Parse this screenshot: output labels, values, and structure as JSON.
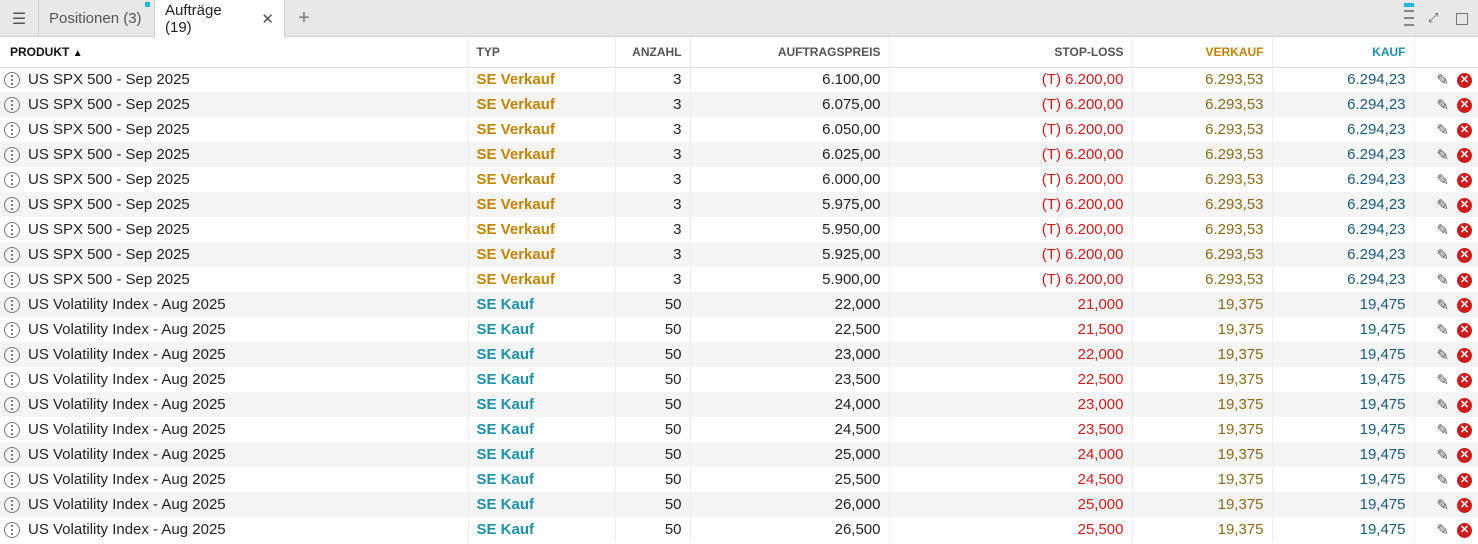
{
  "tabs": {
    "menu_icon": "hamburger-icon",
    "items": [
      {
        "label": "Positionen (3)"
      },
      {
        "label": "Aufträge (19)"
      }
    ],
    "close_glyph": "✕",
    "add_glyph": "+"
  },
  "columns": {
    "produkt": "PRODUKT",
    "typ": "TYP",
    "anzahl": "ANZAHL",
    "auftragspreis": "AUFTRAGSPREIS",
    "stop_loss": "STOP-LOSS",
    "verkauf": "VERKAUF",
    "kauf": "KAUF"
  },
  "colors": {
    "sell": "#c08400",
    "buy": "#1e90a8",
    "stop": "#cc1d1d"
  },
  "rows": [
    {
      "produkt": "US SPX 500 - Sep 2025",
      "typ": "SE Verkauf",
      "side": "sell",
      "anzahl": "3",
      "preis": "6.100,00",
      "stop": "(T) 6.200,00",
      "verkauf": "6.293,53",
      "kauf": "6.294,23"
    },
    {
      "produkt": "US SPX 500 - Sep 2025",
      "typ": "SE Verkauf",
      "side": "sell",
      "anzahl": "3",
      "preis": "6.075,00",
      "stop": "(T) 6.200,00",
      "verkauf": "6.293,53",
      "kauf": "6.294,23"
    },
    {
      "produkt": "US SPX 500 - Sep 2025",
      "typ": "SE Verkauf",
      "side": "sell",
      "anzahl": "3",
      "preis": "6.050,00",
      "stop": "(T) 6.200,00",
      "verkauf": "6.293,53",
      "kauf": "6.294,23"
    },
    {
      "produkt": "US SPX 500 - Sep 2025",
      "typ": "SE Verkauf",
      "side": "sell",
      "anzahl": "3",
      "preis": "6.025,00",
      "stop": "(T) 6.200,00",
      "verkauf": "6.293,53",
      "kauf": "6.294,23"
    },
    {
      "produkt": "US SPX 500 - Sep 2025",
      "typ": "SE Verkauf",
      "side": "sell",
      "anzahl": "3",
      "preis": "6.000,00",
      "stop": "(T) 6.200,00",
      "verkauf": "6.293,53",
      "kauf": "6.294,23"
    },
    {
      "produkt": "US SPX 500 - Sep 2025",
      "typ": "SE Verkauf",
      "side": "sell",
      "anzahl": "3",
      "preis": "5.975,00",
      "stop": "(T) 6.200,00",
      "verkauf": "6.293,53",
      "kauf": "6.294,23"
    },
    {
      "produkt": "US SPX 500 - Sep 2025",
      "typ": "SE Verkauf",
      "side": "sell",
      "anzahl": "3",
      "preis": "5.950,00",
      "stop": "(T) 6.200,00",
      "verkauf": "6.293,53",
      "kauf": "6.294,23"
    },
    {
      "produkt": "US SPX 500 - Sep 2025",
      "typ": "SE Verkauf",
      "side": "sell",
      "anzahl": "3",
      "preis": "5.925,00",
      "stop": "(T) 6.200,00",
      "verkauf": "6.293,53",
      "kauf": "6.294,23"
    },
    {
      "produkt": "US SPX 500 - Sep 2025",
      "typ": "SE Verkauf",
      "side": "sell",
      "anzahl": "3",
      "preis": "5.900,00",
      "stop": "(T) 6.200,00",
      "verkauf": "6.293,53",
      "kauf": "6.294,23"
    },
    {
      "produkt": "US Volatility Index - Aug 2025",
      "typ": "SE Kauf",
      "side": "buy",
      "anzahl": "50",
      "preis": "22,000",
      "stop": "21,000",
      "verkauf": "19,375",
      "kauf": "19,475"
    },
    {
      "produkt": "US Volatility Index - Aug 2025",
      "typ": "SE Kauf",
      "side": "buy",
      "anzahl": "50",
      "preis": "22,500",
      "stop": "21,500",
      "verkauf": "19,375",
      "kauf": "19,475"
    },
    {
      "produkt": "US Volatility Index - Aug 2025",
      "typ": "SE Kauf",
      "side": "buy",
      "anzahl": "50",
      "preis": "23,000",
      "stop": "22,000",
      "verkauf": "19,375",
      "kauf": "19,475"
    },
    {
      "produkt": "US Volatility Index - Aug 2025",
      "typ": "SE Kauf",
      "side": "buy",
      "anzahl": "50",
      "preis": "23,500",
      "stop": "22,500",
      "verkauf": "19,375",
      "kauf": "19,475"
    },
    {
      "produkt": "US Volatility Index - Aug 2025",
      "typ": "SE Kauf",
      "side": "buy",
      "anzahl": "50",
      "preis": "24,000",
      "stop": "23,000",
      "verkauf": "19,375",
      "kauf": "19,475"
    },
    {
      "produkt": "US Volatility Index - Aug 2025",
      "typ": "SE Kauf",
      "side": "buy",
      "anzahl": "50",
      "preis": "24,500",
      "stop": "23,500",
      "verkauf": "19,375",
      "kauf": "19,475"
    },
    {
      "produkt": "US Volatility Index - Aug 2025",
      "typ": "SE Kauf",
      "side": "buy",
      "anzahl": "50",
      "preis": "25,000",
      "stop": "24,000",
      "verkauf": "19,375",
      "kauf": "19,475"
    },
    {
      "produkt": "US Volatility Index - Aug 2025",
      "typ": "SE Kauf",
      "side": "buy",
      "anzahl": "50",
      "preis": "25,500",
      "stop": "24,500",
      "verkauf": "19,375",
      "kauf": "19,475"
    },
    {
      "produkt": "US Volatility Index - Aug 2025",
      "typ": "SE Kauf",
      "side": "buy",
      "anzahl": "50",
      "preis": "26,000",
      "stop": "25,000",
      "verkauf": "19,375",
      "kauf": "19,475"
    },
    {
      "produkt": "US Volatility Index - Aug 2025",
      "typ": "SE Kauf",
      "side": "buy",
      "anzahl": "50",
      "preis": "26,500",
      "stop": "25,500",
      "verkauf": "19,375",
      "kauf": "19,475"
    }
  ]
}
